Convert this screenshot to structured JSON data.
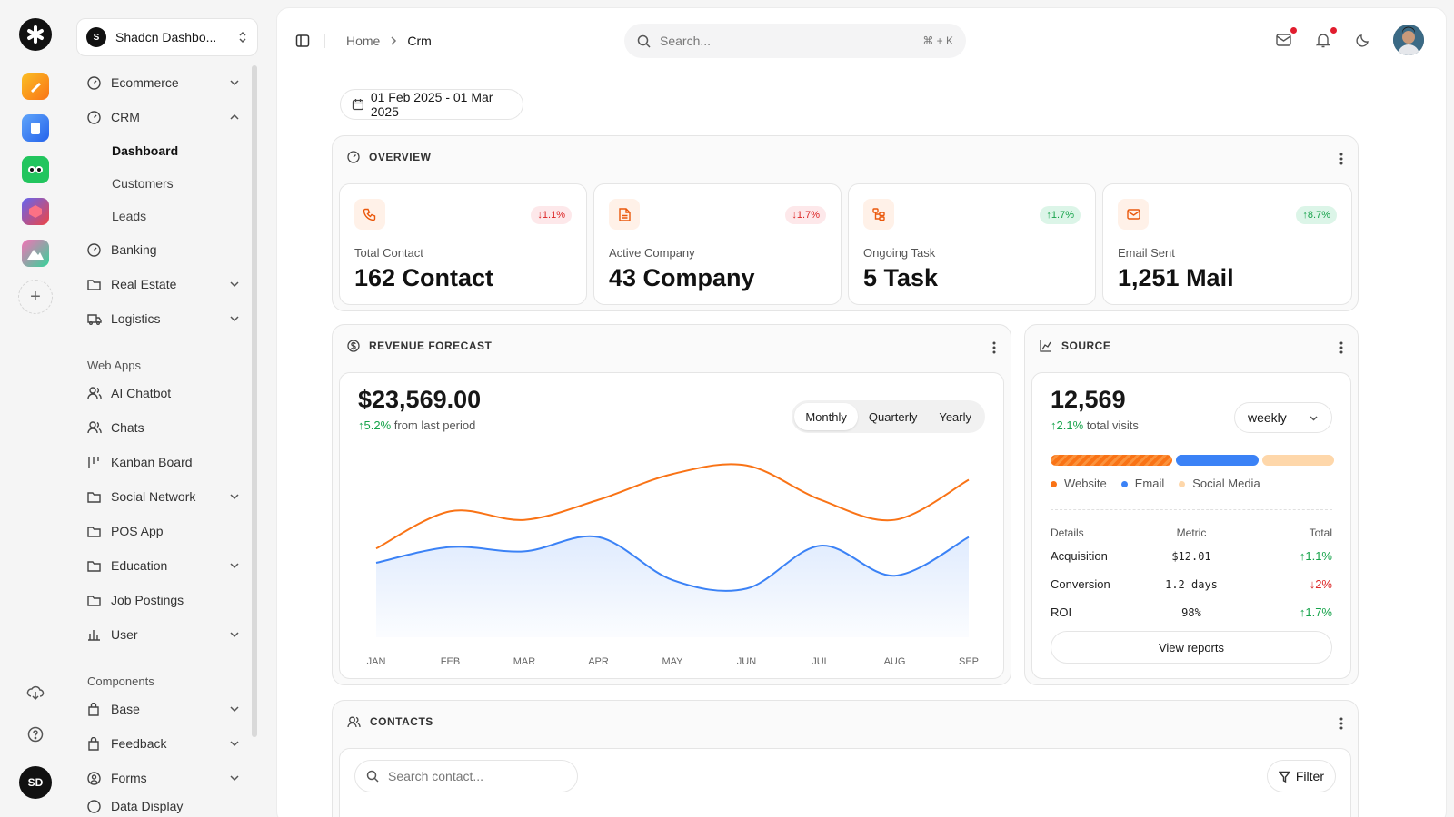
{
  "team": {
    "avatar": "S",
    "name": "Shadcn Dashbo..."
  },
  "rail": {
    "user_initials": "SD"
  },
  "nav": {
    "ecommerce": "Ecommerce",
    "crm": "CRM",
    "crm_sub": [
      "Dashboard",
      "Customers",
      "Leads"
    ],
    "banking": "Banking",
    "real_estate": "Real Estate",
    "logistics": "Logistics",
    "web_apps_title": "Web Apps",
    "ai_chatbot": "AI Chatbot",
    "chats": "Chats",
    "kanban": "Kanban Board",
    "social": "Social Network",
    "pos": "POS App",
    "education": "Education",
    "jobs": "Job Postings",
    "user": "User",
    "components_title": "Components",
    "base": "Base",
    "feedback": "Feedback",
    "forms": "Forms",
    "data_display": "Data Display"
  },
  "header": {
    "crumb_home": "Home",
    "crumb_current": "Crm",
    "search_placeholder": "Search...",
    "search_shortcut": "⌘ + K"
  },
  "date_range": "01 Feb 2025 - 01 Mar 2025",
  "overview": {
    "title": "OVERVIEW",
    "stats": [
      {
        "label": "Total Contact",
        "value": "162 Contact",
        "change": "↓1.1%",
        "icon": "phone-icon",
        "trend": "down"
      },
      {
        "label": "Active Company",
        "value": "43 Company",
        "change": "↓1.7%",
        "icon": "document-icon",
        "trend": "down"
      },
      {
        "label": "Ongoing Task",
        "value": "5 Task",
        "change": "↑1.7%",
        "icon": "task-icon",
        "trend": "up"
      },
      {
        "label": "Email Sent",
        "value": "1,251 Mail",
        "change": "↑8.7%",
        "icon": "mail-icon",
        "trend": "up"
      }
    ]
  },
  "revenue": {
    "title": "REVENUE FORECAST",
    "amount": "$23,569.00",
    "delta": "↑5.2%",
    "delta_text": "from last period",
    "tabs": [
      "Monthly",
      "Quarterly",
      "Yearly"
    ],
    "active_tab": "Monthly"
  },
  "chart_data": {
    "type": "line",
    "x": [
      "JAN",
      "FEB",
      "MAR",
      "APR",
      "MAY",
      "JUN",
      "JUL",
      "AUG",
      "SEP"
    ],
    "series": [
      {
        "values": [
          62,
          88,
          82,
          96,
          114,
          120,
          96,
          82,
          110
        ],
        "color": "#f97316"
      },
      {
        "values": [
          52,
          63,
          60,
          70,
          40,
          34,
          64,
          43,
          70
        ],
        "color": "#3b82f6",
        "fill": true
      }
    ],
    "ylim": [
      0,
      130
    ],
    "grid": false
  },
  "source": {
    "title": "SOURCE",
    "total": "12,569",
    "delta": "↑2.1%",
    "delta_text": "total visits",
    "period": "weekly",
    "legend": [
      {
        "name": "Website",
        "color": "#f97316",
        "share": 0.44
      },
      {
        "name": "Email",
        "color": "#3b82f6",
        "share": 0.3
      },
      {
        "name": "Social Media",
        "color": "#fed7aa",
        "share": 0.26
      }
    ],
    "table": {
      "headers": [
        "Details",
        "Metric",
        "Total"
      ],
      "rows": [
        {
          "detail": "Acquisition",
          "metric": "$12.01",
          "total": "↑1.1%",
          "trend": "up"
        },
        {
          "detail": "Conversion",
          "metric": "1.2 days",
          "total": "↓2%",
          "trend": "down"
        },
        {
          "detail": "ROI",
          "metric": "98%",
          "total": "↑1.7%",
          "trend": "up"
        }
      ]
    },
    "view_reports": "View reports"
  },
  "contacts": {
    "title": "CONTACTS",
    "search_placeholder": "Search contact...",
    "filter": "Filter"
  }
}
